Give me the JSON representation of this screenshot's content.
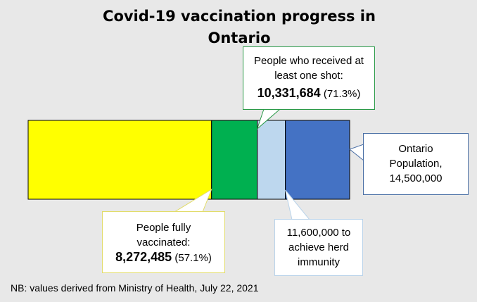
{
  "chart_data": {
    "type": "stacked-bar-with-callouts",
    "title_lines": [
      "Covid-19 vaccination progress in",
      "Ontario"
    ],
    "segments": [
      {
        "key": "fully",
        "value": 8272485,
        "color": "#ffff00"
      },
      {
        "key": "one_shot",
        "value": 10331684,
        "color": "#00b050"
      },
      {
        "key": "herd",
        "value": 11600000,
        "color": "#bdd7ee"
      },
      {
        "key": "population",
        "value": 14500000,
        "color": "#4472c4"
      }
    ],
    "max": 14500000,
    "callouts": {
      "one_shot": {
        "lines": [
          "People who received at",
          "least one shot:"
        ],
        "value": "10,331,684",
        "pct": "(71.3%)"
      },
      "population": {
        "lines": [
          "Ontario",
          "Population,",
          "14,500,000"
        ]
      },
      "fully": {
        "lines": [
          "People fully",
          "vaccinated:"
        ],
        "value": "8,272,485",
        "pct": "(57.1%)"
      },
      "herd": {
        "lines": [
          "11,600,000 to",
          "achieve herd",
          "immunity"
        ]
      }
    },
    "colors": {
      "green_border": "#2a9a48",
      "blue_border": "#4a6fa5",
      "yellow_border": "#e2dc6a",
      "light_border": "#b9d3ea"
    },
    "footnote": "NB: values derived from Ministry of Health, July 22, 2021"
  }
}
